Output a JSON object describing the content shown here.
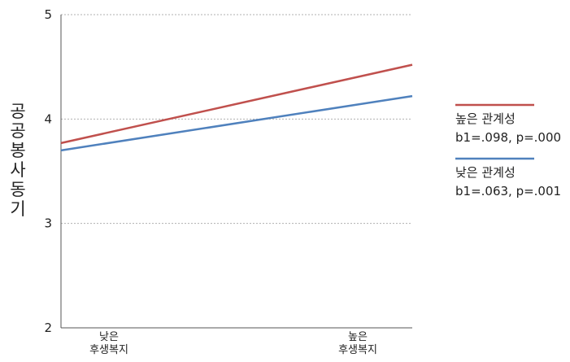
{
  "chart_data": {
    "type": "line",
    "title": "",
    "xlabel": "",
    "ylabel": "공공봉사동기",
    "ylim": [
      2,
      5
    ],
    "yticks": [
      2,
      3,
      4,
      5
    ],
    "categories": [
      [
        "낮은",
        "후생복지"
      ],
      [
        "높은",
        "후생복지"
      ]
    ],
    "series": [
      {
        "name": "높은 관계성",
        "stat": "b1=.098, p=.000",
        "values": [
          3.77,
          4.52
        ],
        "color": "#c0504d"
      },
      {
        "name": "낮은 관계성",
        "stat": "b1=.063, p=.001",
        "values": [
          3.7,
          4.22
        ],
        "color": "#4f81bd"
      }
    ],
    "grid": true,
    "legend_position": "right"
  }
}
